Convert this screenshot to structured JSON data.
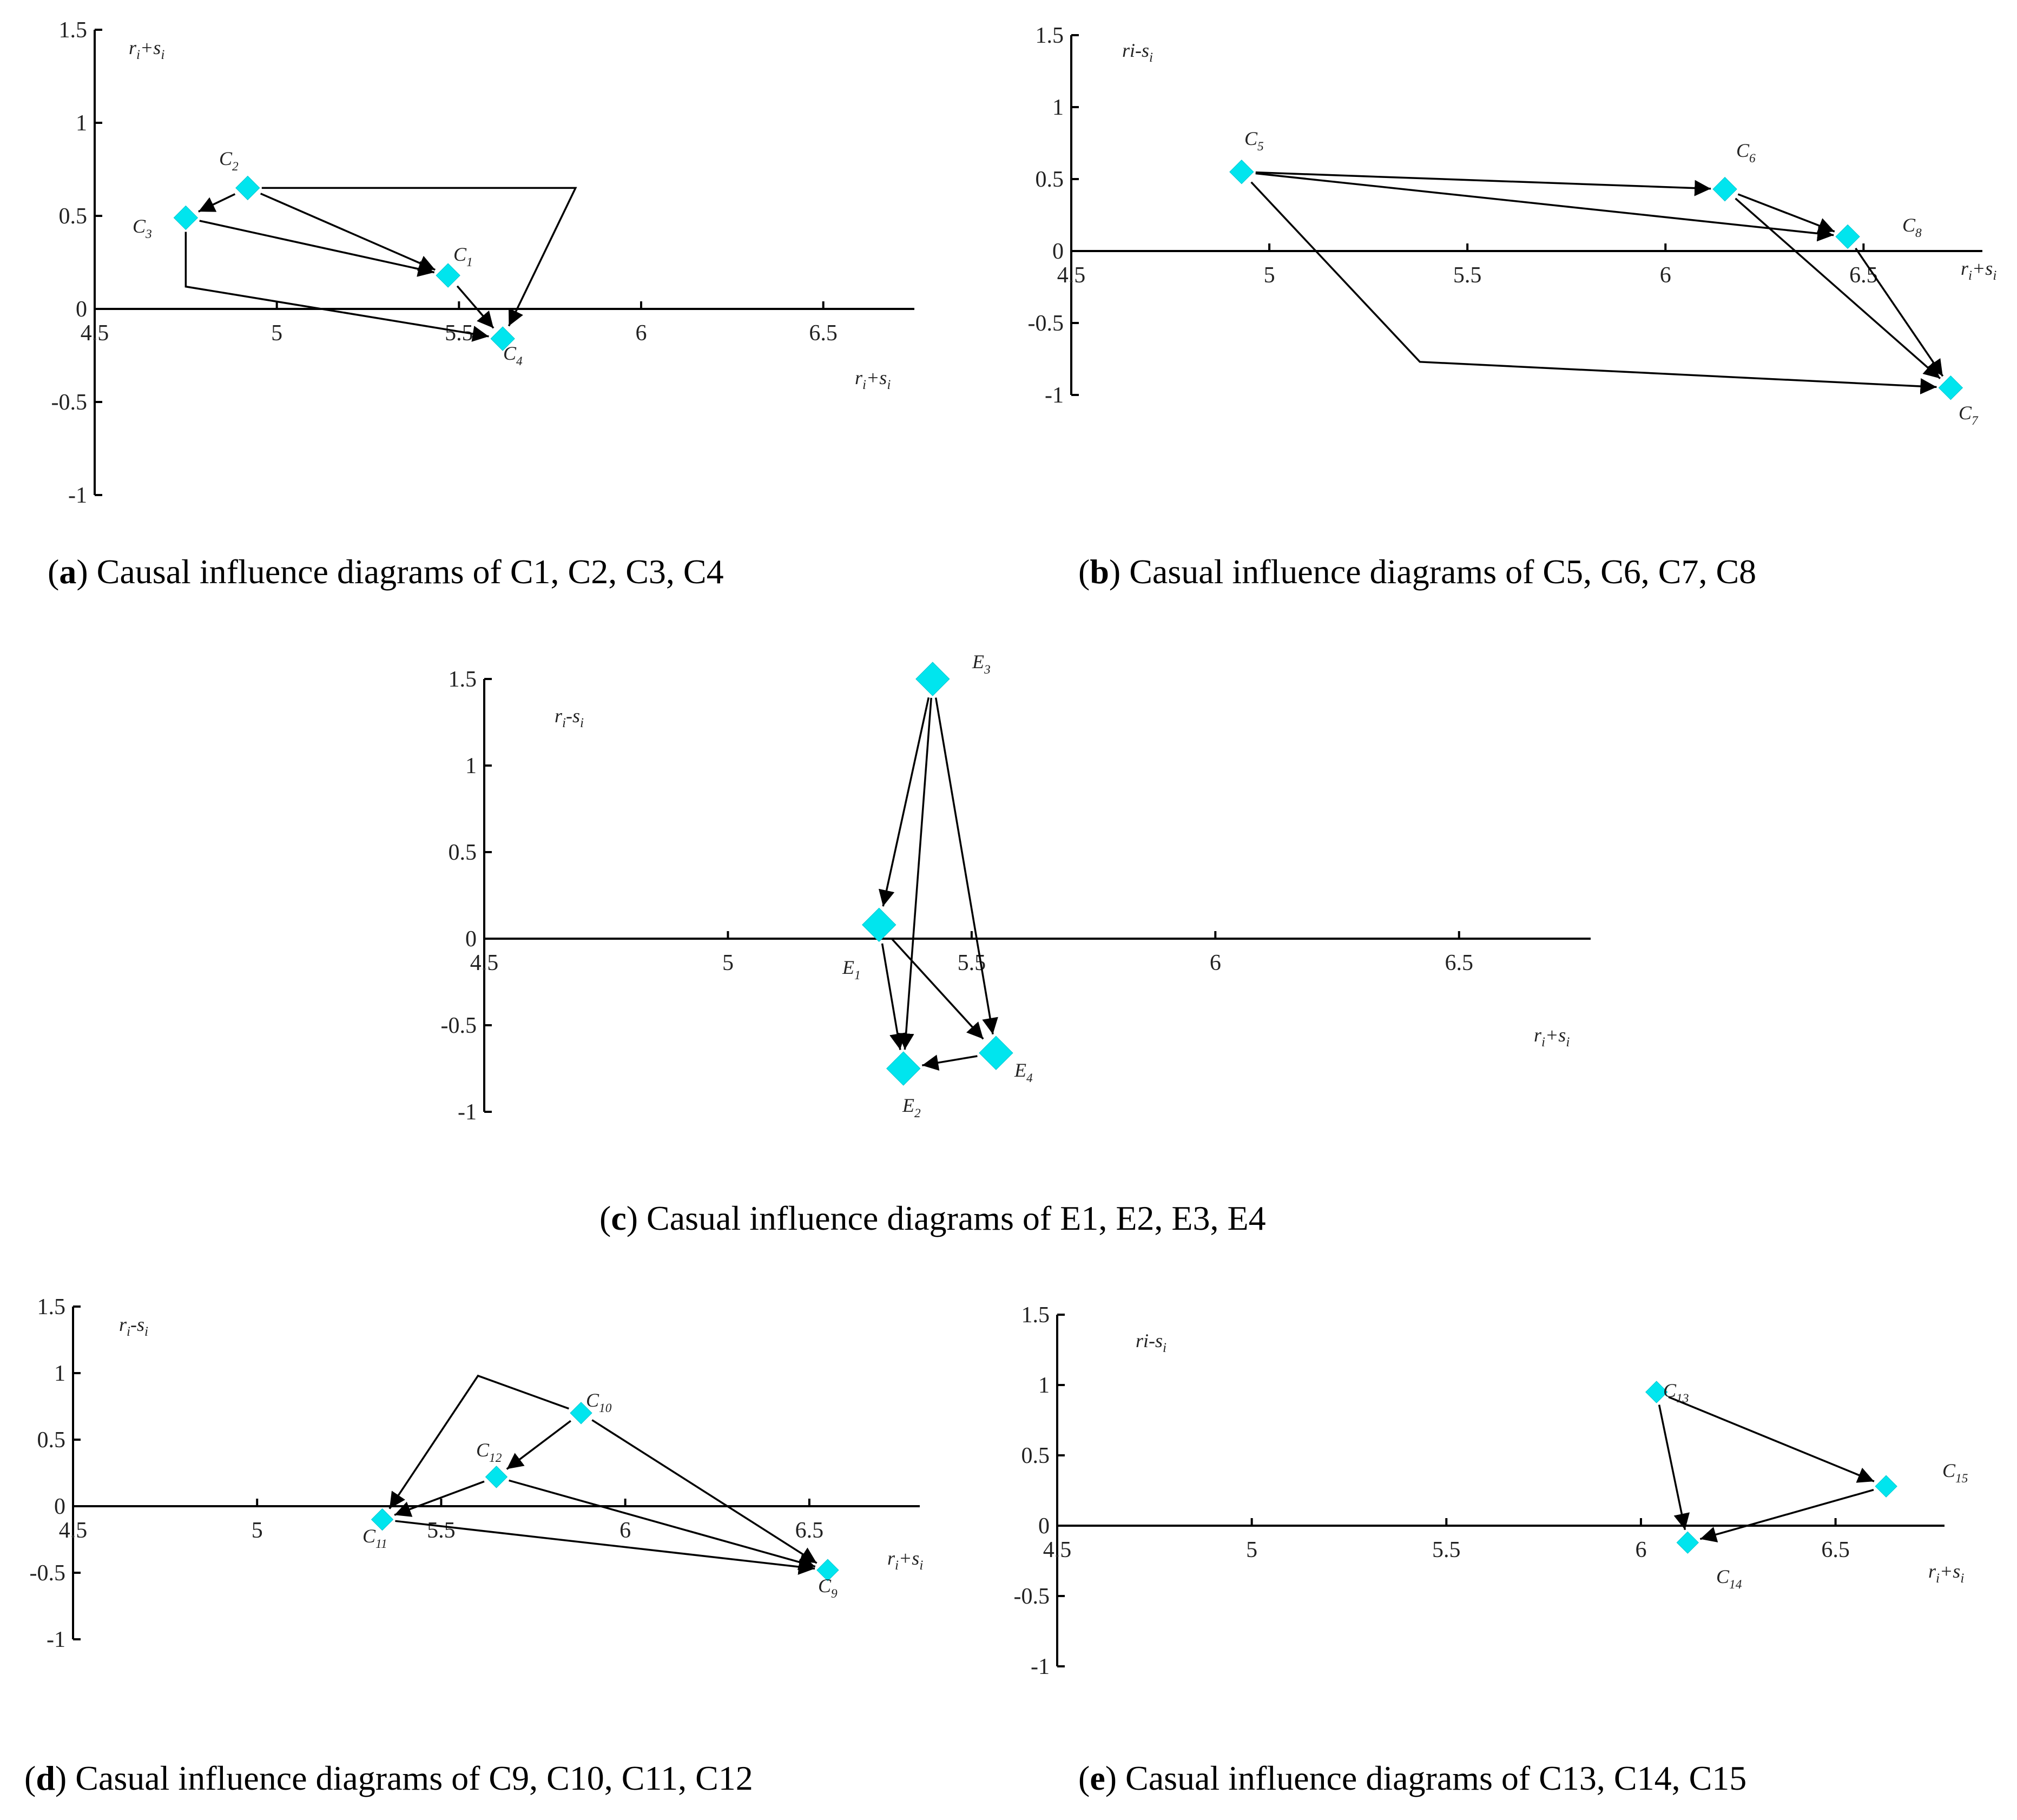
{
  "chart_data": [
    {
      "panel": "a",
      "type": "scatter",
      "caption_letter": "a",
      "caption_text": "Causal influence diagrams of C1, C2, C3, C4",
      "ylabel_sym": "r",
      "ylabel_sub": "i",
      "ylabel_op": "+s",
      "ylabel_sub2": "i",
      "xlabel_sym": "r",
      "xlabel_sub": "i",
      "xlabel_op": "+s",
      "xlabel_sub2": "i",
      "xlim": [
        4.5,
        6.75
      ],
      "ylim": [
        -1,
        1.5
      ],
      "xticks": [
        "4.5",
        "5",
        "5.5",
        "6",
        "6.5"
      ],
      "yticks": [
        "1.5",
        "1",
        "0.5",
        "0",
        "-0.5",
        "-1"
      ],
      "points": [
        {
          "id": "C1",
          "base": "C",
          "sub": "1",
          "x": 5.47,
          "y": 0.18
        },
        {
          "id": "C2",
          "base": "C",
          "sub": "2",
          "x": 4.92,
          "y": 0.65
        },
        {
          "id": "C3",
          "base": "C",
          "sub": "3",
          "x": 4.75,
          "y": 0.49
        },
        {
          "id": "C4",
          "base": "C",
          "sub": "4",
          "x": 5.62,
          "y": -0.16
        }
      ],
      "edges": [
        {
          "from": "C2",
          "to": "C3"
        },
        {
          "from": "C2",
          "to": "C1"
        },
        {
          "from": "C3",
          "to": "C1"
        },
        {
          "from": "C1",
          "to": "C4"
        },
        {
          "from": "C3",
          "to": "C4",
          "via": [
            [
              4.75,
              0.12
            ]
          ]
        },
        {
          "from": "C2",
          "to": "C4",
          "via": [
            [
              5.82,
              0.65
            ]
          ]
        }
      ]
    },
    {
      "panel": "b",
      "type": "scatter",
      "caption_letter": "b",
      "caption_text": "Casual influence diagrams of C5, C6, C7, C8",
      "ylabel_sym": "ri",
      "ylabel_sub": "",
      "ylabel_op": "-s",
      "ylabel_sub2": "i",
      "xlabel_sym": "r",
      "xlabel_sub": "i",
      "xlabel_op": "+s",
      "xlabel_sub2": "i",
      "xlim": [
        4.5,
        6.8
      ],
      "ylim": [
        -1,
        1.5
      ],
      "xticks": [
        "4.5",
        "5",
        "5.5",
        "6",
        "6.5"
      ],
      "yticks": [
        "1.5",
        "1",
        "0.5",
        "0",
        "-0.5",
        "-1"
      ],
      "points": [
        {
          "id": "C5",
          "base": "C",
          "sub": "5",
          "x": 4.93,
          "y": 0.55
        },
        {
          "id": "C6",
          "base": "C",
          "sub": "6",
          "x": 6.15,
          "y": 0.43
        },
        {
          "id": "C7",
          "base": "C",
          "sub": "7",
          "x": 6.72,
          "y": -0.95
        },
        {
          "id": "C8",
          "base": "C",
          "sub": "8",
          "x": 6.46,
          "y": 0.1
        }
      ],
      "edges": [
        {
          "from": "C5",
          "to": "C6"
        },
        {
          "from": "C5",
          "to": "C8"
        },
        {
          "from": "C6",
          "to": "C8"
        },
        {
          "from": "C6",
          "to": "C7"
        },
        {
          "from": "C8",
          "to": "C7"
        },
        {
          "from": "C5",
          "to": "C7",
          "via": [
            [
              5.38,
              -0.77
            ]
          ]
        }
      ]
    },
    {
      "panel": "c",
      "type": "scatter",
      "caption_letter": "c",
      "caption_text": "Casual influence diagrams of E1, E2, E3, E4",
      "ylabel_sym": "r",
      "ylabel_sub": "i",
      "ylabel_op": "-s",
      "ylabel_sub2": "i",
      "xlabel_sym": "r",
      "xlabel_sub": "i",
      "xlabel_op": "+s",
      "xlabel_sub2": "i",
      "xlim": [
        4.5,
        6.77
      ],
      "ylim": [
        -1,
        1.5
      ],
      "xticks": [
        "4.5",
        "5",
        "5.5",
        "6",
        "6.5"
      ],
      "yticks": [
        "1.5",
        "1",
        "0.5",
        "0",
        "-0.5",
        "-1"
      ],
      "points": [
        {
          "id": "E1",
          "base": "E",
          "sub": "1",
          "x": 5.31,
          "y": 0.08
        },
        {
          "id": "E2",
          "base": "E",
          "sub": "2",
          "x": 5.36,
          "y": -0.75
        },
        {
          "id": "E3",
          "base": "E",
          "sub": "3",
          "x": 5.42,
          "y": 1.5
        },
        {
          "id": "E4",
          "base": "E",
          "sub": "4",
          "x": 5.55,
          "y": -0.66
        }
      ],
      "edges": [
        {
          "from": "E3",
          "to": "E1"
        },
        {
          "from": "E3",
          "to": "E2"
        },
        {
          "from": "E3",
          "to": "E4"
        },
        {
          "from": "E1",
          "to": "E2"
        },
        {
          "from": "E1",
          "to": "E4"
        },
        {
          "from": "E4",
          "to": "E2"
        }
      ]
    },
    {
      "panel": "d",
      "type": "scatter",
      "caption_letter": "d",
      "caption_text": "Casual influence diagrams of C9, C10, C11, C12",
      "ylabel_sym": "r",
      "ylabel_sub": "i",
      "ylabel_op": "-s",
      "ylabel_sub2": "i",
      "xlabel_sym": "r",
      "xlabel_sub": "i",
      "xlabel_op": "+s",
      "xlabel_sub2": "i",
      "xlim": [
        4.5,
        6.8
      ],
      "ylim": [
        -1,
        1.5
      ],
      "xticks": [
        "4.5",
        "5",
        "5.5",
        "6",
        "6.5"
      ],
      "yticks": [
        "1.5",
        "1",
        "0.5",
        "0",
        "-0.5",
        "-1"
      ],
      "points": [
        {
          "id": "C9",
          "base": "C",
          "sub": "9",
          "x": 6.55,
          "y": -0.48
        },
        {
          "id": "C10",
          "base": "C",
          "sub": "10",
          "x": 5.88,
          "y": 0.7
        },
        {
          "id": "C11",
          "base": "C",
          "sub": "11",
          "x": 5.34,
          "y": -0.1
        },
        {
          "id": "C12",
          "base": "C",
          "sub": "12",
          "x": 5.65,
          "y": 0.22
        }
      ],
      "edges": [
        {
          "from": "C10",
          "to": "C12"
        },
        {
          "from": "C10",
          "to": "C9"
        },
        {
          "from": "C12",
          "to": "C11"
        },
        {
          "from": "C12",
          "to": "C9"
        },
        {
          "from": "C11",
          "to": "C9"
        },
        {
          "from": "C10",
          "to": "C11",
          "via": [
            [
              5.6,
              0.98
            ]
          ]
        }
      ]
    },
    {
      "panel": "e",
      "type": "scatter",
      "caption_letter": "e",
      "caption_text": "Casual influence diagrams of C13, C14, C15",
      "ylabel_sym": "ri",
      "ylabel_sub": "",
      "ylabel_op": "-s",
      "ylabel_sub2": "i",
      "xlabel_sym": "r",
      "xlabel_sub": "i",
      "xlabel_op": "+s",
      "xlabel_sub2": "i",
      "xlim": [
        4.5,
        6.78
      ],
      "ylim": [
        -1,
        1.5
      ],
      "xticks": [
        "4.5",
        "5",
        "5.5",
        "6",
        "6.5"
      ],
      "yticks": [
        "1.5",
        "1",
        "0.5",
        "0",
        "-0.5",
        "-1"
      ],
      "points": [
        {
          "id": "C13",
          "base": "C",
          "sub": "13",
          "x": 6.04,
          "y": 0.95
        },
        {
          "id": "C14",
          "base": "C",
          "sub": "14",
          "x": 6.12,
          "y": -0.12
        },
        {
          "id": "C15",
          "base": "C",
          "sub": "15",
          "x": 6.63,
          "y": 0.28
        }
      ],
      "edges": [
        {
          "from": "C13",
          "to": "C15"
        },
        {
          "from": "C13",
          "to": "C14"
        },
        {
          "from": "C15",
          "to": "C14"
        }
      ]
    }
  ]
}
